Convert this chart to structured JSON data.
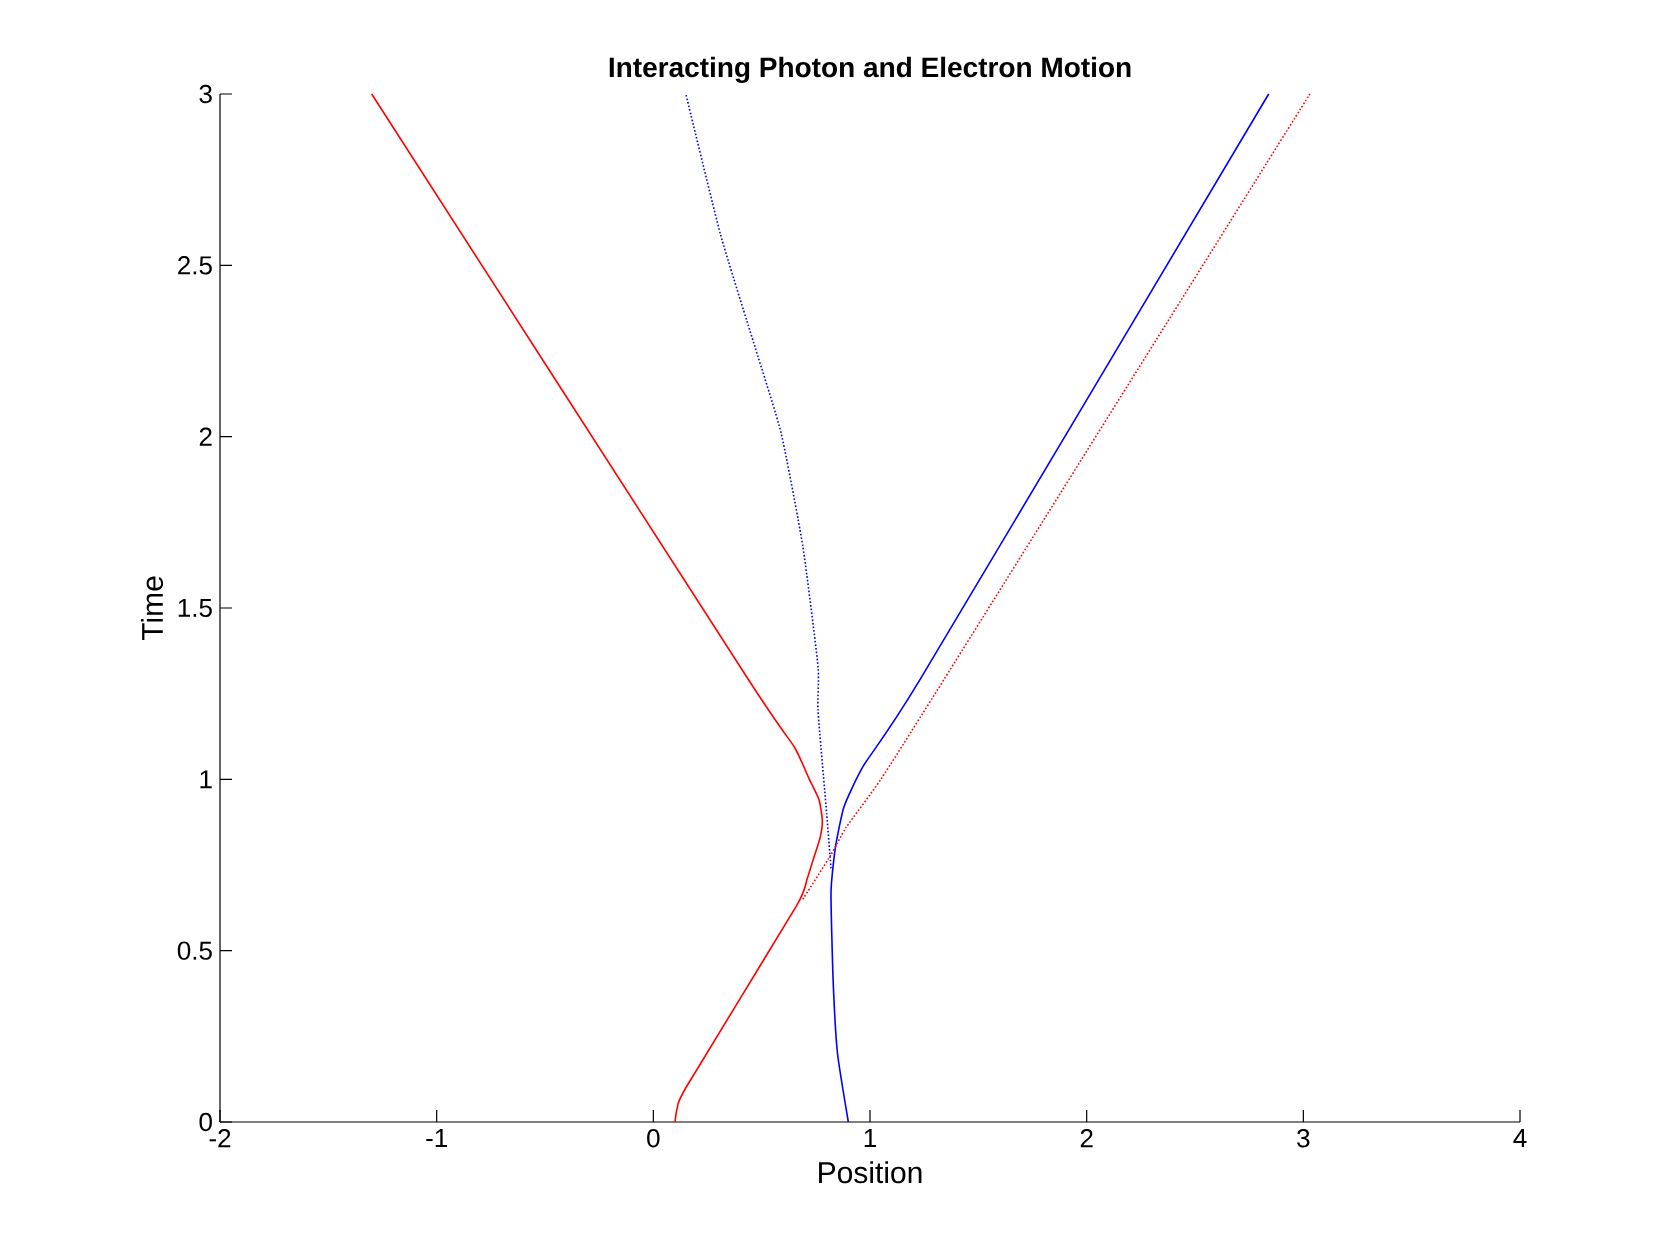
{
  "chart_data": {
    "type": "line",
    "title": "Interacting Photon and Electron Motion",
    "xlabel": "Position",
    "ylabel": "Time",
    "xlim": [
      -2,
      4
    ],
    "ylim": [
      0,
      3
    ],
    "xticks": [
      -2,
      -1,
      0,
      1,
      2,
      3,
      4
    ],
    "yticks": [
      0,
      0.5,
      1,
      1.5,
      2,
      2.5,
      3
    ],
    "grid": false,
    "series": [
      {
        "color": "#ff0000",
        "line_style": "solid",
        "x": [
          0.1,
          0.11,
          0.15,
          0.66,
          0.71,
          0.74,
          0.77,
          0.78,
          0.765,
          0.72,
          0.65,
          0.44,
          -1.3
        ],
        "values": [
          0,
          0.04,
          0.1,
          0.63,
          0.71,
          0.77,
          0.83,
          0.88,
          0.94,
          1.0,
          1.095,
          1.29,
          3
        ]
      },
      {
        "color": "#0000ff",
        "line_style": "solid",
        "x": [
          0.9,
          0.85,
          0.83,
          0.82,
          0.84,
          0.88,
          0.97,
          1.23,
          2.84
        ],
        "values": [
          0,
          0.2,
          0.41,
          0.67,
          0.8,
          0.92,
          1.04,
          1.29,
          3
        ]
      },
      {
        "color": "#ff0000",
        "line_style": "dotted",
        "x": [
          0.69,
          0.82,
          0.89,
          1.05,
          1.34,
          3.03
        ],
        "values": [
          0.65,
          0.78,
          0.86,
          1.0,
          1.29,
          3
        ]
      },
      {
        "color": "#0000ff",
        "line_style": "dotted",
        "x": [
          0.82,
          0.8,
          0.76,
          0.76,
          0.69,
          0.59,
          0.47,
          0.31,
          0.15
        ],
        "values": [
          0.74,
          0.9,
          1.2,
          1.33,
          1.68,
          2.01,
          2.26,
          2.59,
          3
        ]
      }
    ]
  }
}
